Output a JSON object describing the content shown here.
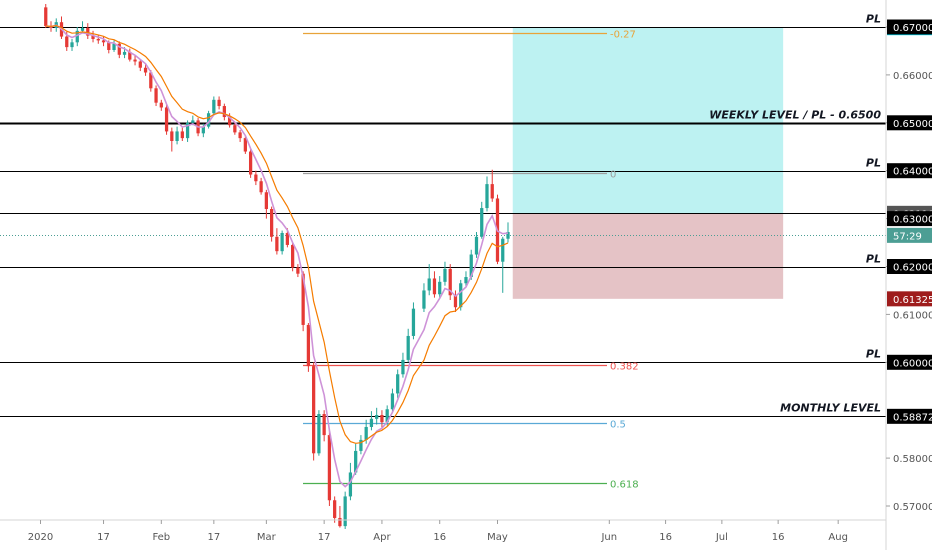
{
  "chart_data": {
    "type": "candlestick",
    "title": "",
    "xlabel": "",
    "ylabel": "",
    "ylim": [
      0.5655,
      0.674
    ],
    "grid": false,
    "y_ticks": [
      "0.67000",
      "0.66000",
      "0.65000",
      "0.64000",
      "0.63000",
      "0.62000",
      "0.61000",
      "0.60000",
      "0.58000",
      "0.57000"
    ],
    "x_ticks": [
      {
        "label": "2020",
        "date": "2020-01-01"
      },
      {
        "label": "17",
        "date": "2020-01-17"
      },
      {
        "label": "Feb",
        "date": "2020-02-01"
      },
      {
        "label": "17",
        "date": "2020-02-17"
      },
      {
        "label": "Mar",
        "date": "2020-03-01"
      },
      {
        "label": "17",
        "date": "2020-03-17"
      },
      {
        "label": "Apr",
        "date": "2020-04-01"
      },
      {
        "label": "16",
        "date": "2020-04-16"
      },
      {
        "label": "May",
        "date": "2020-05-01"
      },
      {
        "label": "Jun",
        "date": "2020-06-01"
      },
      {
        "label": "16",
        "date": "2020-06-16"
      },
      {
        "label": "Jul",
        "date": "2020-07-01"
      },
      {
        "label": "16",
        "date": "2020-07-16"
      },
      {
        "label": "Aug",
        "date": "2020-08-01"
      }
    ],
    "price_badges": [
      {
        "value": "0.66985",
        "y": 0.66985,
        "bg": "#00e5ff",
        "fg": "#000000"
      },
      {
        "value": "0.63110",
        "y": 0.6311,
        "bg": "#555555",
        "fg": "#ffffff"
      },
      {
        "value": "57:29",
        "y": 0.6265,
        "bg": "#4c9e94",
        "fg": "#ffffff"
      },
      {
        "value": "0.61325",
        "y": 0.61325,
        "bg": "#9e1c1c",
        "fg": "#ffffff"
      },
      {
        "value": "0.58872",
        "y": 0.58872,
        "bg": "#000000",
        "fg": "#ffffff"
      },
      {
        "value": "0.67000",
        "y": 0.67,
        "bg": "#000000",
        "fg": "#ffffff"
      },
      {
        "value": "0.65000",
        "y": 0.65,
        "bg": "#000000",
        "fg": "#ffffff"
      },
      {
        "value": "0.64000",
        "y": 0.64,
        "bg": "#000000",
        "fg": "#ffffff"
      },
      {
        "value": "0.63000",
        "y": 0.63,
        "bg": "#000000",
        "fg": "#ffffff"
      },
      {
        "value": "0.62000",
        "y": 0.62,
        "bg": "#000000",
        "fg": "#ffffff"
      },
      {
        "value": "0.60000",
        "y": 0.6,
        "bg": "#000000",
        "fg": "#ffffff"
      }
    ],
    "horizontal_levels": [
      {
        "y": 0.67,
        "label": "PL",
        "thick": false
      },
      {
        "y": 0.65,
        "label": "WEEKLY LEVEL / PL - 0.6500",
        "thick": true
      },
      {
        "y": 0.64,
        "label": "PL",
        "thick": false
      },
      {
        "y": 0.6311,
        "label": "",
        "thick": false
      },
      {
        "y": 0.62,
        "label": "PL",
        "thick": false
      },
      {
        "y": 0.6,
        "label": "PL",
        "thick": false
      },
      {
        "y": 0.58872,
        "label": "MONTHLY LEVEL",
        "thick": false
      }
    ],
    "current_price_line": 0.6265,
    "fib_levels": [
      {
        "ratio": "-0.27",
        "y": 0.6688,
        "color": "#e8a33a"
      },
      {
        "ratio": "0",
        "y": 0.6395,
        "color": "#9e9e9e"
      },
      {
        "ratio": "0.382",
        "y": 0.5995,
        "color": "#ef5350"
      },
      {
        "ratio": "0.5",
        "y": 0.5873,
        "color": "#5aa9d6"
      },
      {
        "ratio": "0.618",
        "y": 0.5748,
        "color": "#4caf50"
      }
    ],
    "position_box": {
      "entry": 0.6311,
      "target": 0.67,
      "stop": 0.61325,
      "from_date": "2020-05-04",
      "to_date": "2020-07-16",
      "profit_color": "#b2f0f0",
      "loss_color": "#e0b8bc"
    },
    "series": [
      {
        "type": "candles",
        "dates": [
          "2020-01-02",
          "2020-01-03",
          "2020-01-06",
          "2020-01-07",
          "2020-01-08",
          "2020-01-09",
          "2020-01-10",
          "2020-01-13",
          "2020-01-14",
          "2020-01-15",
          "2020-01-16",
          "2020-01-17",
          "2020-01-20",
          "2020-01-21",
          "2020-01-22",
          "2020-01-23",
          "2020-01-24",
          "2020-01-27",
          "2020-01-28",
          "2020-01-29",
          "2020-01-30",
          "2020-01-31",
          "2020-02-03",
          "2020-02-04",
          "2020-02-05",
          "2020-02-06",
          "2020-02-07",
          "2020-02-10",
          "2020-02-11",
          "2020-02-12",
          "2020-02-13",
          "2020-02-14",
          "2020-02-17",
          "2020-02-18",
          "2020-02-19",
          "2020-02-20",
          "2020-02-21",
          "2020-02-24",
          "2020-02-25",
          "2020-02-26",
          "2020-02-27",
          "2020-02-28",
          "2020-03-02",
          "2020-03-03",
          "2020-03-04",
          "2020-03-05",
          "2020-03-06",
          "2020-03-09",
          "2020-03-10",
          "2020-03-11",
          "2020-03-12",
          "2020-03-13",
          "2020-03-16",
          "2020-03-17",
          "2020-03-18",
          "2020-03-19",
          "2020-03-20",
          "2020-03-23",
          "2020-03-24",
          "2020-03-25",
          "2020-03-26",
          "2020-03-27",
          "2020-03-30",
          "2020-03-31",
          "2020-04-01",
          "2020-04-02",
          "2020-04-03",
          "2020-04-06",
          "2020-04-07",
          "2020-04-08",
          "2020-04-09",
          "2020-04-13",
          "2020-04-14",
          "2020-04-15",
          "2020-04-16",
          "2020-04-17",
          "2020-04-20",
          "2020-04-21",
          "2020-04-22",
          "2020-04-23",
          "2020-04-24",
          "2020-04-27",
          "2020-04-28",
          "2020-04-29",
          "2020-04-30",
          "2020-05-01",
          "2020-05-04",
          "2020-05-05"
        ],
        "open": [
          0.6741,
          0.6702,
          0.6698,
          0.671,
          0.668,
          0.6658,
          0.6668,
          0.6692,
          0.6698,
          0.6682,
          0.6675,
          0.6672,
          0.6668,
          0.6652,
          0.6665,
          0.6642,
          0.6648,
          0.6632,
          0.6628,
          0.6615,
          0.6605,
          0.6572,
          0.6542,
          0.6532,
          0.6482,
          0.6462,
          0.6482,
          0.6468,
          0.65,
          0.6505,
          0.6478,
          0.6492,
          0.652,
          0.6548,
          0.6535,
          0.6512,
          0.6495,
          0.648,
          0.6468,
          0.644,
          0.6392,
          0.6378,
          0.6355,
          0.632,
          0.6262,
          0.6232,
          0.627,
          0.6245,
          0.6198,
          0.6185,
          0.6078,
          0.5992,
          0.581,
          0.5892,
          0.5848,
          0.5712,
          0.5675,
          0.5658,
          0.572,
          0.577,
          0.5815,
          0.5838,
          0.5865,
          0.5882,
          0.589,
          0.5875,
          0.5902,
          0.5935,
          0.5975,
          0.6005,
          0.6055,
          0.6112,
          0.615,
          0.6175,
          0.6142,
          0.6168,
          0.6195,
          0.614,
          0.6115,
          0.6165,
          0.6178,
          0.6225,
          0.6262,
          0.6322,
          0.6372,
          0.6342,
          0.621,
          0.6258
        ],
        "close": [
          0.6702,
          0.6698,
          0.671,
          0.668,
          0.6658,
          0.6668,
          0.6692,
          0.6698,
          0.6682,
          0.6675,
          0.6672,
          0.6668,
          0.6652,
          0.6665,
          0.6642,
          0.6648,
          0.6632,
          0.6628,
          0.6615,
          0.6605,
          0.6572,
          0.6542,
          0.6532,
          0.6482,
          0.6462,
          0.6482,
          0.6468,
          0.65,
          0.6505,
          0.6478,
          0.6492,
          0.652,
          0.6548,
          0.6535,
          0.6512,
          0.6495,
          0.648,
          0.6468,
          0.644,
          0.6392,
          0.6378,
          0.6355,
          0.632,
          0.6262,
          0.6232,
          0.627,
          0.6245,
          0.6198,
          0.6185,
          0.6078,
          0.5992,
          0.581,
          0.5892,
          0.5848,
          0.5712,
          0.5675,
          0.5658,
          0.572,
          0.577,
          0.5815,
          0.5838,
          0.5865,
          0.5882,
          0.589,
          0.5875,
          0.5902,
          0.5935,
          0.5975,
          0.6005,
          0.6055,
          0.6112,
          0.615,
          0.6175,
          0.6142,
          0.6168,
          0.6195,
          0.614,
          0.6115,
          0.6165,
          0.6178,
          0.6225,
          0.6262,
          0.6322,
          0.6372,
          0.6342,
          0.621,
          0.6258,
          0.6272
        ],
        "high": [
          0.6748,
          0.6712,
          0.6718,
          0.6722,
          0.669,
          0.6675,
          0.67,
          0.6712,
          0.6708,
          0.6692,
          0.6684,
          0.668,
          0.6672,
          0.6672,
          0.667,
          0.6658,
          0.6655,
          0.664,
          0.6632,
          0.6622,
          0.661,
          0.6578,
          0.6548,
          0.6538,
          0.649,
          0.6492,
          0.649,
          0.6505,
          0.6515,
          0.651,
          0.6498,
          0.6525,
          0.6555,
          0.6555,
          0.654,
          0.652,
          0.65,
          0.6485,
          0.6472,
          0.6445,
          0.64,
          0.6385,
          0.636,
          0.6325,
          0.628,
          0.6275,
          0.628,
          0.625,
          0.6205,
          0.619,
          0.6082,
          0.6,
          0.59,
          0.59,
          0.586,
          0.572,
          0.57,
          0.573,
          0.579,
          0.583,
          0.5848,
          0.588,
          0.5898,
          0.5905,
          0.59,
          0.591,
          0.5945,
          0.5985,
          0.602,
          0.607,
          0.6125,
          0.6165,
          0.6205,
          0.619,
          0.618,
          0.621,
          0.6205,
          0.615,
          0.6172,
          0.619,
          0.6235,
          0.6272,
          0.6335,
          0.6388,
          0.6402,
          0.635,
          0.6262,
          0.6292
        ],
        "low": [
          0.6698,
          0.669,
          0.669,
          0.6675,
          0.665,
          0.665,
          0.666,
          0.6688,
          0.6675,
          0.6668,
          0.6665,
          0.666,
          0.6645,
          0.6648,
          0.6635,
          0.6635,
          0.6628,
          0.662,
          0.6608,
          0.6598,
          0.6565,
          0.6535,
          0.6525,
          0.6475,
          0.644,
          0.6455,
          0.6462,
          0.646,
          0.6495,
          0.6472,
          0.647,
          0.6488,
          0.6515,
          0.6528,
          0.6505,
          0.649,
          0.6475,
          0.646,
          0.6435,
          0.6385,
          0.637,
          0.635,
          0.63,
          0.6252,
          0.6225,
          0.6225,
          0.624,
          0.619,
          0.6178,
          0.6065,
          0.598,
          0.5795,
          0.5805,
          0.5835,
          0.57,
          0.5665,
          0.5655,
          0.5652,
          0.5712,
          0.5765,
          0.5808,
          0.583,
          0.5858,
          0.587,
          0.586,
          0.5868,
          0.5895,
          0.5925,
          0.5968,
          0.6,
          0.6048,
          0.6105,
          0.614,
          0.6135,
          0.6135,
          0.616,
          0.613,
          0.6105,
          0.6108,
          0.6158,
          0.6172,
          0.6218,
          0.6258,
          0.6315,
          0.6335,
          0.6205,
          0.6145,
          0.625
        ],
        "up_color": "#26a69a",
        "down_color": "#e53935"
      }
    ]
  }
}
